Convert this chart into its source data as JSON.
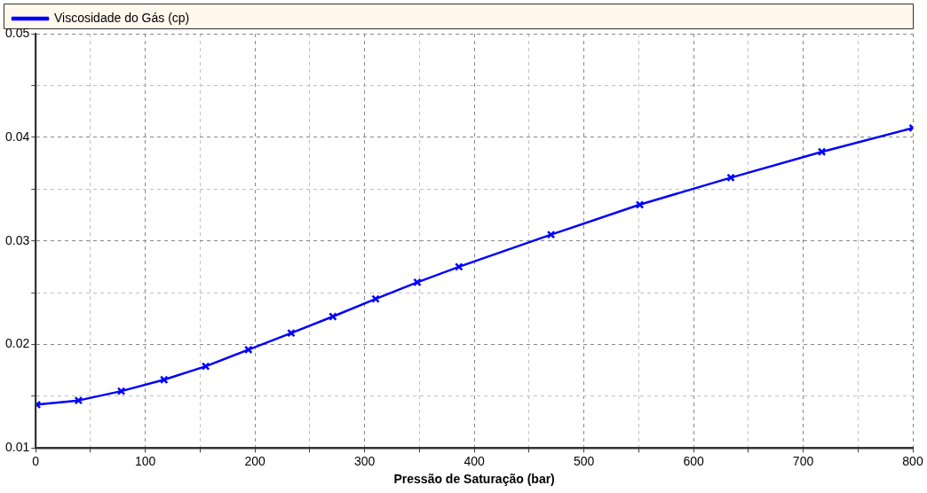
{
  "chart_data": {
    "type": "line",
    "xlabel": "Pressão de Saturação (bar)",
    "x": [
      1,
      39,
      78,
      117,
      155,
      194,
      233,
      271,
      310,
      348,
      386,
      470,
      551,
      634,
      717,
      800
    ],
    "series": [
      {
        "name": "Viscosidade do Gás (cp)",
        "color": "#0000ff",
        "values": [
          0.0142,
          0.0146,
          0.0155,
          0.0166,
          0.0179,
          0.0195,
          0.0211,
          0.0227,
          0.0244,
          0.026,
          0.0275,
          0.0306,
          0.0335,
          0.0361,
          0.0386,
          0.0409
        ]
      }
    ],
    "xlim": [
      0,
      800
    ],
    "xticks": [
      0,
      {
        "value": 50,
        "label": null
      },
      100,
      {
        "value": 150,
        "label": null
      },
      200,
      {
        "value": 250,
        "label": null
      },
      300,
      {
        "value": 350,
        "label": null
      },
      400,
      {
        "value": 450,
        "label": null
      },
      500,
      {
        "value": 550,
        "label": null
      },
      600,
      {
        "value": 650,
        "label": null
      },
      700,
      {
        "value": 750,
        "label": null
      },
      800
    ],
    "ylim": [
      0.01,
      0.05
    ],
    "yticks": [
      0.01,
      {
        "value": 0.015,
        "label": null
      },
      0.02,
      {
        "value": 0.025,
        "label": null
      },
      0.03,
      {
        "value": 0.035,
        "label": null
      },
      0.04,
      {
        "value": 0.045,
        "label": null
      },
      0.05
    ],
    "grid": true,
    "legend": "top left",
    "marker": "cross",
    "line_style": "solid"
  }
}
